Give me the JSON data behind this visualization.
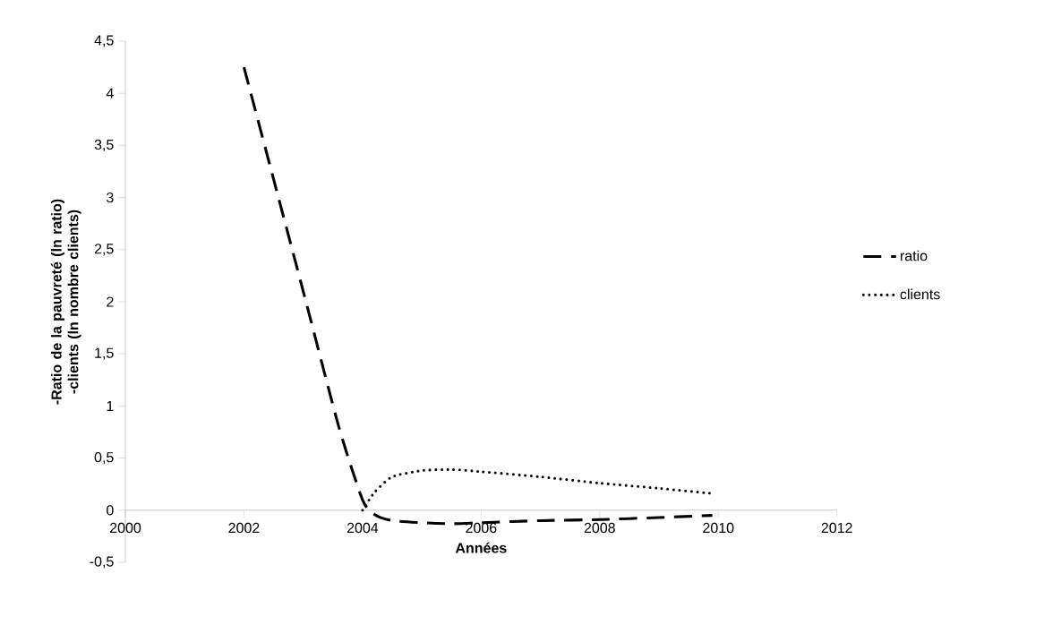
{
  "chart_data": {
    "type": "line",
    "xlabel": "Années",
    "ylabel": "-Ratio de la pauvreté (ln ratio) -clients (ln nombre clients)",
    "series": [
      {
        "name": "ratio",
        "color": "#000000",
        "line_style": "dashed",
        "x": [
          2002,
          2003,
          2003.6,
          2004,
          2004.2,
          2004.5,
          2005,
          2005.5,
          2006,
          2007,
          2008,
          2009,
          2009.9
        ],
        "values": [
          4.25,
          2.1,
          0.8,
          0.1,
          -0.04,
          -0.1,
          -0.12,
          -0.13,
          -0.12,
          -0.1,
          -0.09,
          -0.07,
          -0.05
        ]
      },
      {
        "name": "clients",
        "color": "#000000",
        "line_style": "dotted",
        "x": [
          2004,
          2004.2,
          2004.5,
          2005,
          2005.5,
          2006,
          2007,
          2008,
          2009,
          2009.9
        ],
        "values": [
          0,
          0.17,
          0.32,
          0.38,
          0.39,
          0.37,
          0.32,
          0.26,
          0.21,
          0.16
        ]
      }
    ],
    "xlim": [
      2000,
      2012
    ],
    "xticks": [
      2000,
      2002,
      2004,
      2006,
      2008,
      2010,
      2012
    ],
    "ylim": [
      -0.5,
      4.5
    ],
    "yticks": [
      {
        "value": -0.5,
        "label": "-0,5"
      },
      0,
      {
        "value": 0.5,
        "label": "0,5"
      },
      1,
      {
        "value": 1.5,
        "label": "1,5"
      },
      2,
      {
        "value": 2.5,
        "label": "2,5"
      },
      3,
      {
        "value": 3.5,
        "label": "3,5"
      },
      4,
      {
        "value": 4.5,
        "label": "4,5"
      }
    ],
    "legend": "right",
    "marker": "none"
  }
}
